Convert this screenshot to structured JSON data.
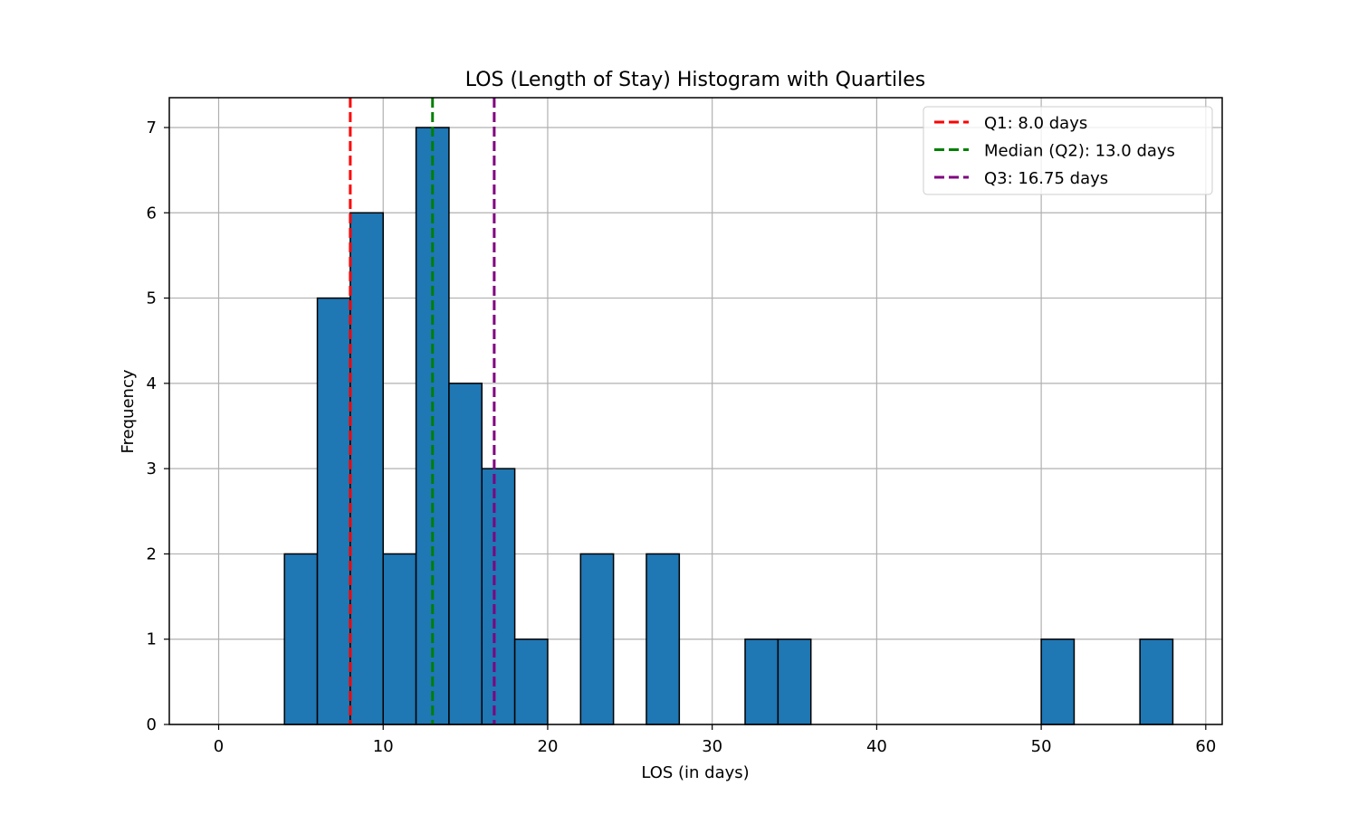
{
  "chart_data": {
    "type": "bar",
    "title": "LOS (Length of Stay) Histogram with Quartiles",
    "xlabel": "LOS (in days)",
    "ylabel": "Frequency",
    "xlim": [
      -3,
      61
    ],
    "ylim": [
      0,
      7.35
    ],
    "xticks": [
      0,
      10,
      20,
      30,
      40,
      50,
      60
    ],
    "yticks": [
      0,
      1,
      2,
      3,
      4,
      5,
      6,
      7
    ],
    "grid": true,
    "bar_color": "#1f77b4",
    "bins": [
      {
        "x0": 4,
        "x1": 6,
        "count": 2
      },
      {
        "x0": 6,
        "x1": 8,
        "count": 5
      },
      {
        "x0": 8,
        "x1": 10,
        "count": 6
      },
      {
        "x0": 10,
        "x1": 12,
        "count": 2
      },
      {
        "x0": 12,
        "x1": 14,
        "count": 7
      },
      {
        "x0": 14,
        "x1": 16,
        "count": 4
      },
      {
        "x0": 16,
        "x1": 18,
        "count": 3
      },
      {
        "x0": 18,
        "x1": 20,
        "count": 1
      },
      {
        "x0": 22,
        "x1": 24,
        "count": 2
      },
      {
        "x0": 26,
        "x1": 28,
        "count": 2
      },
      {
        "x0": 32,
        "x1": 34,
        "count": 1
      },
      {
        "x0": 34,
        "x1": 36,
        "count": 1
      },
      {
        "x0": 50,
        "x1": 52,
        "count": 1
      },
      {
        "x0": 56,
        "x1": 58,
        "count": 1
      }
    ],
    "quartile_lines": [
      {
        "label": "Q1: 8.0 days",
        "value": 8.0,
        "color": "#ff0000"
      },
      {
        "label": "Median (Q2): 13.0 days",
        "value": 13.0,
        "color": "#008000"
      },
      {
        "label": "Q3: 16.75 days",
        "value": 16.75,
        "color": "#800080"
      }
    ],
    "legend_position": "top-right"
  }
}
